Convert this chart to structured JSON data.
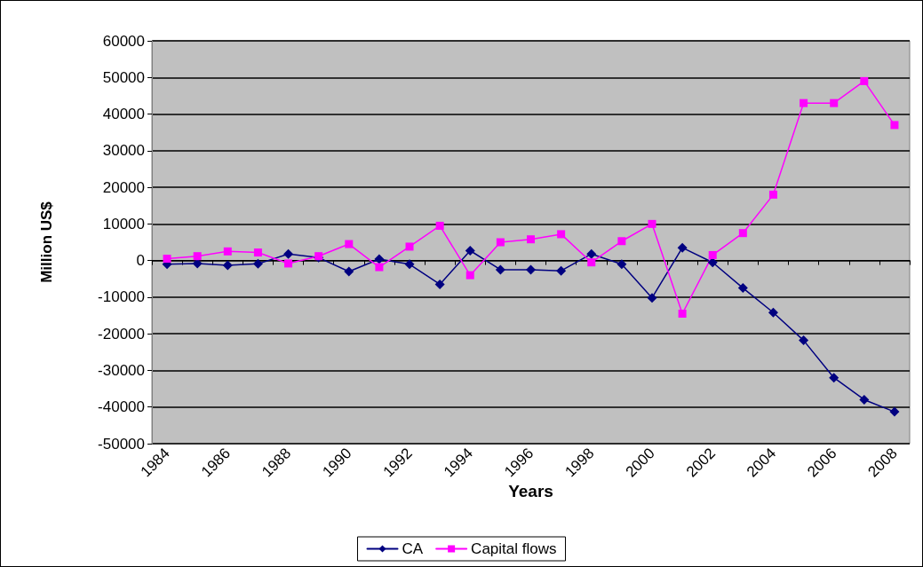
{
  "chart_data": {
    "type": "line",
    "xlabel": "Years",
    "ylabel": "Million US$",
    "categories": [
      "1984",
      null,
      "1986",
      null,
      "1988",
      null,
      "1990",
      null,
      "1992",
      null,
      "1994",
      null,
      "1996",
      null,
      "1998",
      null,
      "2000",
      null,
      "2002",
      null,
      "2004",
      null,
      "2006",
      null,
      "2008"
    ],
    "series": [
      {
        "name": "CA",
        "color": "#000080",
        "marker": "diamond",
        "values": [
          -1000,
          -800,
          -1300,
          -900,
          1800,
          800,
          -3000,
          400,
          -1000,
          -6500,
          2700,
          -2500,
          -2500,
          -2800,
          1800,
          -1000,
          -10200,
          3500,
          -500,
          -7500,
          -14200,
          -21800,
          -32000,
          -38000,
          -41300
        ]
      },
      {
        "name": "Capital flows",
        "color": "#ff00ff",
        "marker": "square",
        "values": [
          500,
          1200,
          2500,
          2200,
          -800,
          1200,
          4500,
          -1800,
          3800,
          9500,
          -4000,
          5000,
          5800,
          7200,
          -500,
          5300,
          10000,
          -14500,
          1500,
          7500,
          18000,
          43000,
          43000,
          49000,
          37000
        ]
      }
    ],
    "ylim": [
      -50000,
      60000
    ],
    "yticks": [
      -50000,
      -40000,
      -30000,
      -20000,
      -10000,
      0,
      10000,
      20000,
      30000,
      40000,
      50000,
      60000
    ],
    "grid": "y",
    "legend": "bottom",
    "line_style": "solid"
  }
}
